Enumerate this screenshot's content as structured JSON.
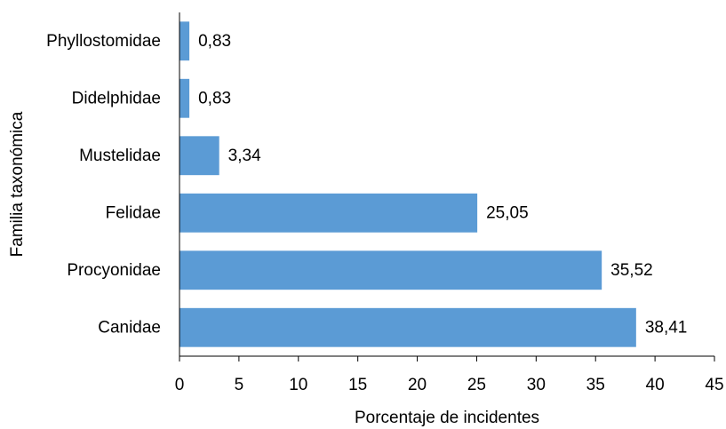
{
  "chart_data": {
    "type": "bar",
    "orientation": "horizontal",
    "categories": [
      "Phyllostomidae",
      "Didelphidae",
      "Mustelidae",
      "Felidae",
      "Procyonidae",
      "Canidae"
    ],
    "values": [
      0.83,
      0.83,
      3.34,
      25.05,
      35.52,
      38.41
    ],
    "data_labels": [
      "0,83",
      "0,83",
      "3,34",
      "25,05",
      "35,52",
      "38,41"
    ],
    "xlabel": "Porcentaje de incidentes",
    "ylabel": "Familia taxonómica",
    "xlim": [
      0,
      45
    ],
    "xticks": [
      0,
      5,
      10,
      15,
      20,
      25,
      30,
      35,
      40,
      45
    ],
    "grid": false,
    "legend": "none",
    "bar_color": "#5b9bd5"
  }
}
